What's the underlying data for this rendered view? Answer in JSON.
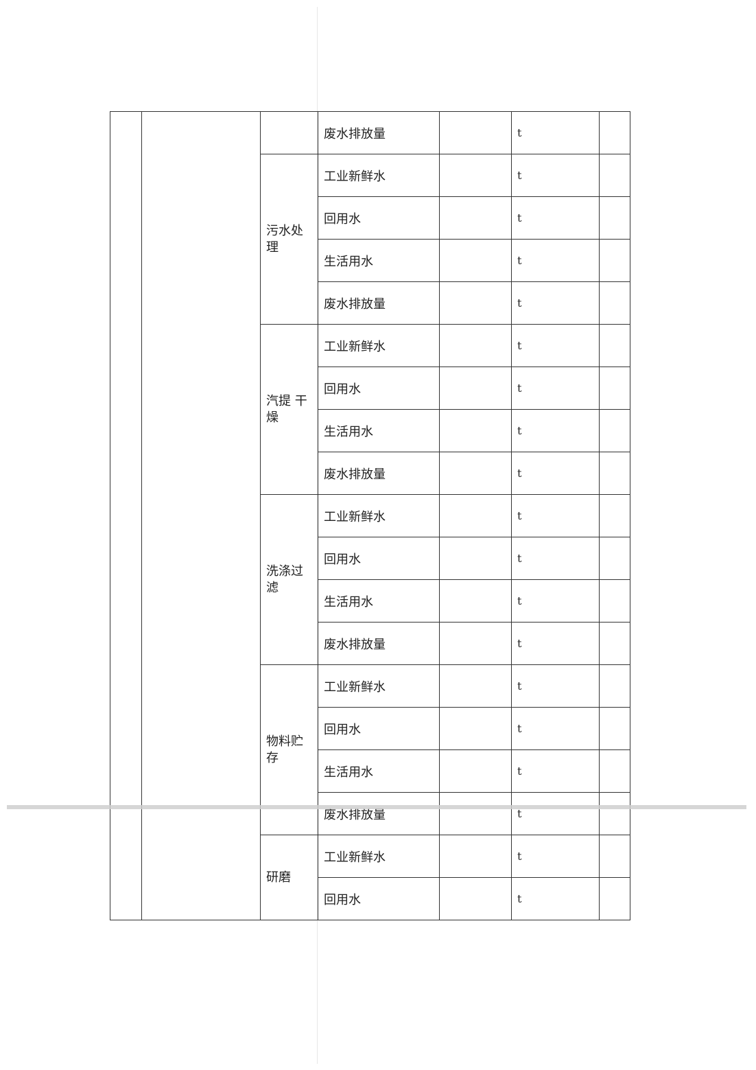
{
  "table": {
    "groups": [
      {
        "label": "",
        "rows": [
          {
            "item": "废水排放量",
            "value": "",
            "unit": "t"
          }
        ]
      },
      {
        "label": "污水处理",
        "rows": [
          {
            "item": "工业新鲜水",
            "value": "",
            "unit": "t"
          },
          {
            "item": "回用水",
            "value": "",
            "unit": "t"
          },
          {
            "item": "生活用水",
            "value": "",
            "unit": "t"
          },
          {
            "item": "废水排放量",
            "value": "",
            "unit": "t"
          }
        ]
      },
      {
        "label": "汽提 干燥",
        "rows": [
          {
            "item": "工业新鲜水",
            "value": "",
            "unit": "t"
          },
          {
            "item": "回用水",
            "value": "",
            "unit": "t"
          },
          {
            "item": "生活用水",
            "value": "",
            "unit": "t"
          },
          {
            "item": "废水排放量",
            "value": "",
            "unit": "t"
          }
        ]
      },
      {
        "label": "洗涤过滤",
        "rows": [
          {
            "item": "工业新鲜水",
            "value": "",
            "unit": "t"
          },
          {
            "item": "回用水",
            "value": "",
            "unit": "t"
          },
          {
            "item": "生活用水",
            "value": "",
            "unit": "t"
          },
          {
            "item": "废水排放量",
            "value": "",
            "unit": "t"
          }
        ]
      },
      {
        "label": "物料贮存",
        "rows": [
          {
            "item": "工业新鲜水",
            "value": "",
            "unit": "t"
          },
          {
            "item": "回用水",
            "value": "",
            "unit": "t"
          },
          {
            "item": "生活用水",
            "value": "",
            "unit": "t"
          },
          {
            "item": "废水排放量",
            "value": "",
            "unit": "t"
          }
        ]
      },
      {
        "label": "研磨",
        "rows": [
          {
            "item": "工业新鲜水",
            "value": "",
            "unit": "t"
          },
          {
            "item": "回用水",
            "value": "",
            "unit": "t"
          }
        ]
      }
    ]
  }
}
